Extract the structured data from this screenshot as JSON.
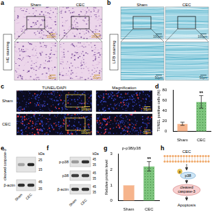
{
  "panels": {
    "a": {
      "label": "a",
      "stain": "HE staining",
      "groups": [
        "Sham",
        "CEC"
      ],
      "scale_bars": [
        "100μm",
        "50μm"
      ]
    },
    "b": {
      "label": "b",
      "stain": "LFB staining",
      "groups": [
        "Sham",
        "CEC"
      ],
      "scale_bars": [
        "100μm",
        "50μm"
      ]
    },
    "c": {
      "label": "c",
      "columns": [
        "TUNEL/DAPI",
        "Magnification"
      ],
      "rows": [
        "Sham",
        "CEC"
      ],
      "scale_bars": [
        "100μm",
        "50μm"
      ]
    },
    "e": {
      "label": "e",
      "unit": "kDa",
      "lanes": [
        "Sham",
        "CEC"
      ],
      "bands": [
        {
          "name": "cleaved caspase-3",
          "markers": [
            25,
            15
          ]
        },
        {
          "name": "β-actin",
          "markers": [
            45,
            35
          ]
        }
      ]
    },
    "f": {
      "label": "f",
      "unit": "kDa",
      "lanes": [
        "Sham",
        "CEC"
      ],
      "bands": [
        {
          "name": "p-p38",
          "markers": [
            45,
            35
          ]
        },
        {
          "name": "p38",
          "markers": [
            45,
            35
          ]
        },
        {
          "name": "β-actin",
          "markers": [
            45,
            35
          ]
        }
      ]
    },
    "h": {
      "label": "h",
      "stimulus": "CEC",
      "phospho": "p",
      "kinase": "p38",
      "effector": "cleaved caspase-3",
      "outcome": "Apoptosis"
    }
  },
  "chart_data": [
    {
      "panel": "d",
      "type": "bar",
      "categories": [
        "Sham",
        "CEC"
      ],
      "values": [
        15,
        57
      ],
      "errors": [
        3,
        12
      ],
      "annotations": [
        null,
        "**"
      ],
      "colors": [
        "#f6b48c",
        "#7cc47c"
      ],
      "y_label": "TUNEL positive cells (%)",
      "ylim": [
        0,
        80
      ],
      "yticks": [
        0,
        20,
        40,
        60,
        80
      ],
      "grid": false
    },
    {
      "panel": "g",
      "type": "bar",
      "title": "p-p38/p38",
      "categories": [
        "Sham",
        "CEC"
      ],
      "values": [
        1,
        2.2
      ],
      "errors": [
        0,
        0.3
      ],
      "annotations": [
        null,
        "**"
      ],
      "colors": [
        "#f6b48c",
        "#7cc47c"
      ],
      "y_label": "Relative protein level",
      "ylim": [
        0,
        3
      ],
      "yticks": [
        0,
        1,
        2,
        3
      ],
      "grid": false
    }
  ]
}
